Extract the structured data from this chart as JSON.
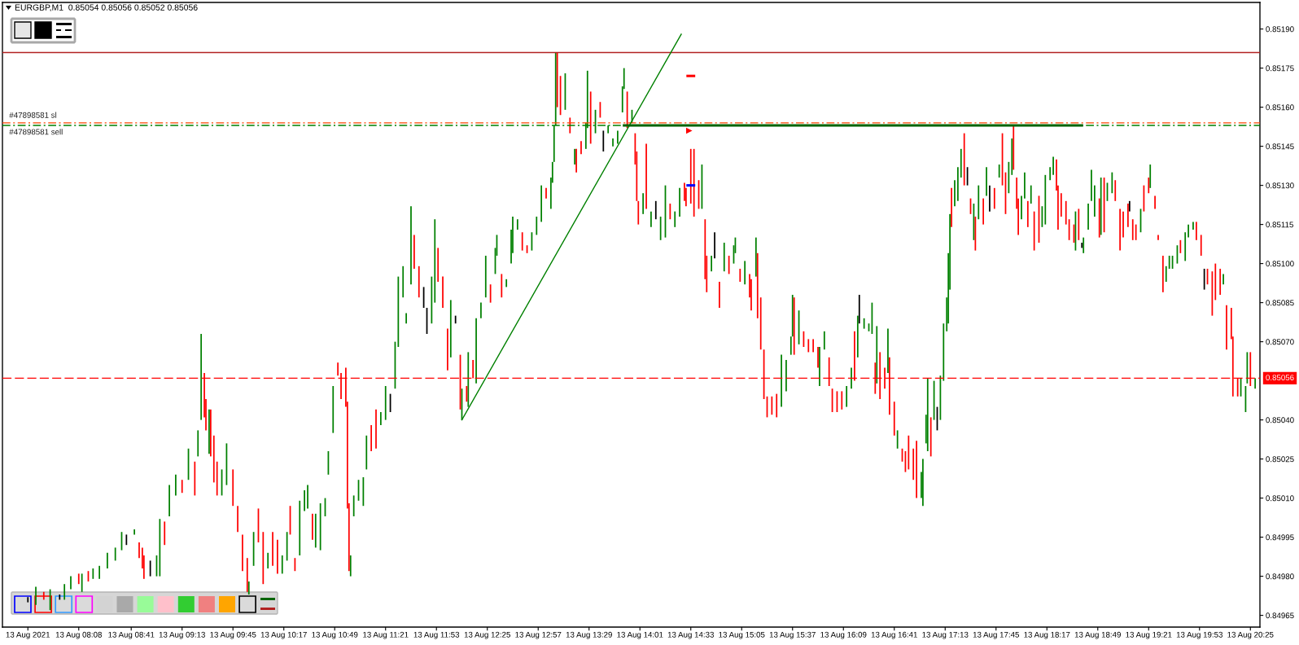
{
  "chart_data": {
    "type": "bar",
    "title": "EURGBP,M1  0.85054 0.85056 0.85052 0.85056",
    "xlim": [
      "2021-08-13T07:20",
      "2021-08-13T20:31"
    ],
    "xticks": [
      {
        "value": "2021-08-13T07:36",
        "label": "13 Aug 2021"
      },
      {
        "value": "2021-08-13T08:08",
        "label": "13 Aug 08:08"
      },
      {
        "value": "2021-08-13T08:41",
        "label": "13 Aug 08:41"
      },
      {
        "value": "2021-08-13T09:13",
        "label": "13 Aug 09:13"
      },
      {
        "value": "2021-08-13T09:45",
        "label": "13 Aug 09:45"
      },
      {
        "value": "2021-08-13T10:17",
        "label": "13 Aug 10:17"
      },
      {
        "value": "2021-08-13T10:49",
        "label": "13 Aug 10:49"
      },
      {
        "value": "2021-08-13T11:21",
        "label": "13 Aug 11:21"
      },
      {
        "value": "2021-08-13T11:53",
        "label": "13 Aug 11:53"
      },
      {
        "value": "2021-08-13T12:25",
        "label": "13 Aug 12:25"
      },
      {
        "value": "2021-08-13T12:57",
        "label": "13 Aug 12:57"
      },
      {
        "value": "2021-08-13T13:29",
        "label": "13 Aug 13:29"
      },
      {
        "value": "2021-08-13T14:01",
        "label": "13 Aug 14:01"
      },
      {
        "value": "2021-08-13T14:33",
        "label": "13 Aug 14:33"
      },
      {
        "value": "2021-08-13T15:05",
        "label": "13 Aug 15:05"
      },
      {
        "value": "2021-08-13T15:37",
        "label": "13 Aug 15:37"
      },
      {
        "value": "2021-08-13T16:09",
        "label": "13 Aug 16:09"
      },
      {
        "value": "2021-08-13T16:41",
        "label": "13 Aug 16:41"
      },
      {
        "value": "2021-08-13T17:13",
        "label": "13 Aug 17:13"
      },
      {
        "value": "2021-08-13T17:45",
        "label": "13 Aug 17:45"
      },
      {
        "value": "2021-08-13T18:17",
        "label": "13 Aug 18:17"
      },
      {
        "value": "2021-08-13T18:49",
        "label": "13 Aug 18:49"
      },
      {
        "value": "2021-08-13T19:21",
        "label": "13 Aug 19:21"
      },
      {
        "value": "2021-08-13T19:53",
        "label": "13 Aug 19:53"
      },
      {
        "value": "2021-08-13T20:25",
        "label": "13 Aug 20:25"
      }
    ],
    "ylim": [
      0.849605,
      0.852002
    ],
    "yticks": [
      {
        "value": 0.8519,
        "label": "0.85190"
      },
      0.85175,
      {
        "value": 0.8516,
        "label": "0.85160"
      },
      0.85145,
      {
        "value": 0.8513,
        "label": "0.85130"
      },
      0.85115,
      {
        "value": 0.851,
        "label": "0.85100"
      },
      0.85085,
      {
        "value": 0.8507,
        "label": "0.85070"
      },
      {
        "value": 0.8504,
        "label": "0.85040"
      },
      0.85025,
      {
        "value": 0.8501,
        "label": "0.85010"
      },
      0.84995,
      {
        "value": 0.8498,
        "label": "0.84980"
      },
      0.84965
    ],
    "ref_lines": [
      {
        "axis": "y",
        "value": 0.85181,
        "color": "#b22222",
        "line_style": "solid"
      },
      {
        "axis": "y",
        "value": 0.85154,
        "label": "#47898581 sl",
        "color": "#ff4500",
        "line_style": "dashdot"
      },
      {
        "axis": "y",
        "value": 0.85153,
        "label": "#47898581 sell",
        "color": "#008000",
        "line_style": "dashdot"
      },
      {
        "axis": "y",
        "value": 0.85056,
        "label": "0.85056",
        "color": "#ff0000",
        "line_style": "dashed"
      }
    ],
    "series": [
      {
        "color": "#008000",
        "x": [
          "2021-08-13T07:41",
          "2021-08-13T07:50",
          "2021-08-13T07:59",
          "2021-08-13T08:03",
          "2021-08-13T08:10",
          "2021-08-13T08:17",
          "2021-08-13T08:21",
          "2021-08-13T08:26",
          "2021-08-13T08:31",
          "2021-08-13T08:35",
          "2021-08-13T08:43",
          "2021-08-13T08:57",
          "2021-08-13T08:59",
          "2021-08-13T09:05",
          "2021-08-13T09:09",
          "2021-08-13T09:17",
          "2021-08-13T09:23",
          "2021-08-13T09:25",
          "2021-08-13T09:30",
          "2021-08-13T09:38",
          "2021-08-13T09:41",
          "2021-08-13T09:55",
          "2021-08-13T09:58",
          "2021-08-13T10:07",
          "2021-08-13T10:16",
          "2021-08-13T10:19",
          "2021-08-13T10:27",
          "2021-08-13T10:30",
          "2021-08-13T10:32",
          "2021-08-13T10:37",
          "2021-08-13T10:40",
          "2021-08-13T10:43",
          "2021-08-13T10:45",
          "2021-08-13T10:48",
          "2021-08-13T10:59",
          "2021-08-13T11:01",
          "2021-08-13T11:04",
          "2021-08-13T11:07",
          "2021-08-13T11:09",
          "2021-08-13T11:18",
          "2021-08-13T11:21",
          "2021-08-13T11:27",
          "2021-08-13T11:29",
          "2021-08-13T11:32",
          "2021-08-13T11:34",
          "2021-08-13T11:37",
          "2021-08-13T11:50",
          "2021-08-13T11:52",
          "2021-08-13T12:02",
          "2021-08-13T12:09",
          "2021-08-13T12:13",
          "2021-08-13T12:18",
          "2021-08-13T12:21",
          "2021-08-13T12:24",
          "2021-08-13T12:30",
          "2021-08-13T12:31",
          "2021-08-13T12:37",
          "2021-08-13T12:40",
          "2021-08-13T12:41",
          "2021-08-13T12:44",
          "2021-08-13T12:53",
          "2021-08-13T12:56",
          "2021-08-13T12:59",
          "2021-08-13T13:05",
          "2021-08-13T13:06",
          "2021-08-13T13:07",
          "2021-08-13T13:08",
          "2021-08-13T13:14",
          "2021-08-13T13:20",
          "2021-08-13T13:27",
          "2021-08-13T13:28",
          "2021-08-13T13:33",
          "2021-08-13T13:41",
          "2021-08-13T13:44",
          "2021-08-13T13:47",
          "2021-08-13T13:50",
          "2021-08-13T13:51",
          "2021-08-13T13:56",
          "2021-08-13T14:03",
          "2021-08-13T14:08",
          "2021-08-13T14:14",
          "2021-08-13T14:17",
          "2021-08-13T14:23",
          "2021-08-13T14:26",
          "2021-08-13T14:40",
          "2021-08-13T14:46",
          "2021-08-13T14:54",
          "2021-08-13T15:00",
          "2021-08-13T15:01",
          "2021-08-13T15:07",
          "2021-08-13T15:14",
          "2021-08-13T15:30",
          "2021-08-13T15:33",
          "2021-08-13T15:36",
          "2021-08-13T15:37",
          "2021-08-13T15:41",
          "2021-08-13T15:54",
          "2021-08-13T15:57",
          "2021-08-13T16:11",
          "2021-08-13T16:14",
          "2021-08-13T16:18",
          "2021-08-13T16:22",
          "2021-08-13T16:25",
          "2021-08-13T16:27",
          "2021-08-13T16:30",
          "2021-08-13T16:37",
          "2021-08-13T16:43",
          "2021-08-13T16:58",
          "2021-08-13T16:59",
          "2021-08-13T17:01",
          "2021-08-13T17:02",
          "2021-08-13T17:06",
          "2021-08-13T17:10",
          "2021-08-13T17:12",
          "2021-08-13T17:14",
          "2021-08-13T17:15",
          "2021-08-13T17:16",
          "2021-08-13T17:19",
          "2021-08-13T17:21",
          "2021-08-13T17:23",
          "2021-08-13T17:31",
          "2021-08-13T17:34",
          "2021-08-13T17:39",
          "2021-08-13T17:47",
          "2021-08-13T17:53",
          "2021-08-13T17:55",
          "2021-08-13T18:01",
          "2021-08-13T18:03",
          "2021-08-13T18:07",
          "2021-08-13T18:14",
          "2021-08-13T18:16",
          "2021-08-13T18:19",
          "2021-08-13T18:21",
          "2021-08-13T18:35",
          "2021-08-13T18:40",
          "2021-08-13T18:43",
          "2021-08-13T18:45",
          "2021-08-13T18:47",
          "2021-08-13T18:51",
          "2021-08-13T18:55",
          "2021-08-13T18:58",
          "2021-08-13T19:16",
          "2021-08-13T19:22",
          "2021-08-13T19:32",
          "2021-08-13T19:34",
          "2021-08-13T19:36",
          "2021-08-13T19:39",
          "2021-08-13T19:44",
          "2021-08-13T19:46",
          "2021-08-13T19:49",
          "2021-08-13T20:08",
          "2021-08-13T20:19",
          "2021-08-13T20:22",
          "2021-08-13T20:23",
          "2021-08-13T20:28"
        ],
        "base": [
          0.84969,
          0.84967,
          0.84971,
          0.84975,
          0.84974,
          0.84979,
          0.84979,
          0.84983,
          0.84986,
          0.8499,
          0.84996,
          0.8498,
          0.8498,
          0.85003,
          0.85011,
          0.85017,
          0.85026,
          0.8504,
          0.85027,
          0.85011,
          0.85015,
          0.84973,
          0.84984,
          0.84983,
          0.84981,
          0.84986,
          0.84988,
          0.85005,
          0.85006,
          0.84991,
          0.8499,
          0.85003,
          0.85019,
          0.85035,
          0.8498,
          0.85003,
          0.85009,
          0.85007,
          0.85021,
          0.85038,
          0.8504,
          0.85052,
          0.85068,
          0.85087,
          0.85077,
          0.85092,
          0.85077,
          0.85085,
          0.85064,
          0.8504,
          0.85045,
          0.85054,
          0.85079,
          0.85087,
          0.85096,
          0.85103,
          0.85091,
          0.851,
          0.85104,
          0.85113,
          0.85105,
          0.85111,
          0.85116,
          0.85121,
          0.85131,
          0.85139,
          0.85153,
          0.85159,
          0.85138,
          0.85144,
          0.85152,
          0.8515,
          0.8515,
          0.85145,
          0.85146,
          0.85158,
          0.85167,
          0.85154,
          0.85119,
          0.85114,
          0.85109,
          0.8511,
          0.85114,
          0.85118,
          0.85121,
          0.85097,
          0.85097,
          0.851,
          0.85104,
          0.85092,
          0.85095,
          0.85045,
          0.85051,
          0.85065,
          0.85072,
          0.85069,
          0.85053,
          0.85067,
          0.85045,
          0.85052,
          0.85064,
          0.85075,
          0.85074,
          0.85073,
          0.85054,
          0.85058,
          0.85029,
          0.8501,
          0.85007,
          0.85031,
          0.85028,
          0.8504,
          0.8504,
          0.85055,
          0.85074,
          0.85077,
          0.8509,
          0.85122,
          0.85124,
          0.85133,
          0.85109,
          0.85117,
          0.85126,
          0.85133,
          0.85127,
          0.85134,
          0.85117,
          0.85125,
          0.85123,
          0.85114,
          0.85115,
          0.85132,
          0.85134,
          0.85105,
          0.85104,
          0.85113,
          0.85124,
          0.85118,
          0.85111,
          0.85124,
          0.85127,
          0.85112,
          0.85129,
          0.85093,
          0.85098,
          0.85098,
          0.851,
          0.85101,
          0.8511,
          0.85113,
          0.85092,
          0.85049,
          0.85043,
          0.85054,
          0.85052
        ],
        "values": [
          7e-05,
          8e-05,
          6e-05,
          5e-05,
          7e-05,
          4e-05,
          5e-05,
          6e-05,
          5e-05,
          7e-05,
          2e-05,
          8e-05,
          0.00022,
          0.00012,
          8e-05,
          0.00012,
          0.0001,
          0.00033,
          0.00017,
          0.0001,
          0.00016,
          5e-05,
          0.00013,
          6e-05,
          7e-05,
          0.00011,
          0.00021,
          8e-05,
          9e-05,
          0.00013,
          0.00018,
          7e-05,
          9e-05,
          0.00018,
          8e-05,
          8e-05,
          8e-05,
          0.00011,
          0.00013,
          5e-05,
          0.00013,
          0.00018,
          0.00027,
          0.00012,
          4e-05,
          0.0003,
          0.00018,
          0.00032,
          0.00022,
          0.00012,
          0.00021,
          0.00025,
          6e-05,
          0.00016,
          0.0001,
          8e-05,
          3e-05,
          0.00013,
          0.00014,
          4e-05,
          7e-05,
          7e-05,
          0.00014,
          0.00012,
          8e-05,
          0.00014,
          0.00028,
          0.00014,
          6e-05,
          0.0001,
          0.00022,
          9e-05,
          3e-05,
          3e-05,
          5e-05,
          0.0001,
          8e-05,
          5e-05,
          8e-05,
          6e-05,
          9e-05,
          0.0002,
          6e-05,
          0.00011,
          0.00017,
          6e-05,
          0.00011,
          7e-05,
          6e-05,
          9e-05,
          0.00015,
          0.0002,
          0.00012,
          7e-05,
          0.00016,
          0.00013,
          0.00015,
          7e-05,
          8e-05,
          8e-05,
          0.00016,
          4e-05,
          3e-05,
          0.00012,
          0.00022,
          0.00017,
          7e-05,
          0.0001,
          0.00018,
          0.00011,
          0.00028,
          0.00015,
          0.00017,
          0.00022,
          0.00013,
          0.00027,
          0.00029,
          0.0001,
          0.00013,
          0.00011,
          0.00014,
          0.00013,
          0.00011,
          5e-05,
          0.00012,
          0.00014,
          9e-05,
          0.0001,
          7e-05,
          8e-05,
          0.00019,
          5e-05,
          7e-05,
          0.00015,
          6e-05,
          0.0001,
          0.00012,
          0.00012,
          0.00022,
          7e-05,
          8e-05,
          9e-05,
          9e-05,
          6e-05,
          5e-05,
          5e-05,
          7e-05,
          0.00011,
          5e-05,
          3e-05,
          4e-05,
          7e-05,
          0.0001,
          0.00012,
          4e-05
        ]
      },
      {
        "color": "#ff0000",
        "x": [
          "2021-08-13T07:46",
          "2021-08-13T08:08",
          "2021-08-13T08:14",
          "2021-08-13T08:46",
          "2021-08-13T08:48",
          "2021-08-13T08:49",
          "2021-08-13T09:02",
          "2021-08-13T09:13",
          "2021-08-13T09:21",
          "2021-08-13T09:27",
          "2021-08-13T09:28",
          "2021-08-13T09:31",
          "2021-08-13T09:33",
          "2021-08-13T09:35",
          "2021-08-13T09:45",
          "2021-08-13T09:48",
          "2021-08-13T09:51",
          "2021-08-13T09:54",
          "2021-08-13T10:01",
          "2021-08-13T10:04",
          "2021-08-13T10:10",
          "2021-08-13T10:13",
          "2021-08-13T10:21",
          "2021-08-13T10:24",
          "2021-08-13T10:35",
          "2021-08-13T10:51",
          "2021-08-13T10:53",
          "2021-08-13T10:56",
          "2021-08-13T10:57",
          "2021-08-13T10:58",
          "2021-08-13T11:12",
          "2021-08-13T11:15",
          "2021-08-13T11:39",
          "2021-08-13T11:42",
          "2021-08-13T11:54",
          "2021-08-13T11:57",
          "2021-08-13T12:00",
          "2021-08-13T12:08",
          "2021-08-13T12:12",
          "2021-08-13T12:16",
          "2021-08-13T12:27",
          "2021-08-13T12:34",
          "2021-08-13T12:47",
          "2021-08-13T12:50",
          "2021-08-13T13:02",
          "2021-08-13T13:09",
          "2021-08-13T13:11",
          "2021-08-13T13:17",
          "2021-08-13T13:21",
          "2021-08-13T13:24",
          "2021-08-13T13:30",
          "2021-08-13T13:36",
          "2021-08-13T13:53",
          "2021-08-13T13:58",
          "2021-08-13T13:59",
          "2021-08-13T14:00",
          "2021-08-13T14:05",
          "2021-08-13T14:20",
          "2021-08-13T14:29",
          "2021-08-13T14:30",
          "2021-08-13T14:33",
          "2021-08-13T14:35",
          "2021-08-13T14:38",
          "2021-08-13T14:42",
          "2021-08-13T14:43",
          "2021-08-13T14:51",
          "2021-08-13T14:57",
          "2021-08-13T15:04",
          "2021-08-13T15:10",
          "2021-08-13T15:11",
          "2021-08-13T15:15",
          "2021-08-13T15:17",
          "2021-08-13T15:19",
          "2021-08-13T15:21",
          "2021-08-13T15:24",
          "2021-08-13T15:27",
          "2021-08-13T15:38",
          "2021-08-13T15:44",
          "2021-08-13T15:47",
          "2021-08-13T15:50",
          "2021-08-13T15:53",
          "2021-08-13T16:00",
          "2021-08-13T16:02",
          "2021-08-13T16:05",
          "2021-08-13T16:08",
          "2021-08-13T16:16",
          "2021-08-13T16:29",
          "2021-08-13T16:32",
          "2021-08-13T16:35",
          "2021-08-13T16:38",
          "2021-08-13T16:41",
          "2021-08-13T16:46",
          "2021-08-13T16:48",
          "2021-08-13T16:50",
          "2021-08-13T16:53",
          "2021-08-13T16:55",
          "2021-08-13T17:04",
          "2021-08-13T17:17",
          "2021-08-13T17:25",
          "2021-08-13T17:29",
          "2021-08-13T17:32",
          "2021-08-13T17:37",
          "2021-08-13T17:44",
          "2021-08-13T17:49",
          "2021-08-13T17:51",
          "2021-08-13T17:56",
          "2021-08-13T17:58",
          "2021-08-13T17:59",
          "2021-08-13T18:05",
          "2021-08-13T18:09",
          "2021-08-13T18:12",
          "2021-08-13T18:23",
          "2021-08-13T18:24",
          "2021-08-13T18:26",
          "2021-08-13T18:29",
          "2021-08-13T18:31",
          "2021-08-13T18:34",
          "2021-08-13T18:37",
          "2021-08-13T18:50",
          "2021-08-13T18:53",
          "2021-08-13T19:00",
          "2021-08-13T19:03",
          "2021-08-13T19:05",
          "2021-08-13T19:08",
          "2021-08-13T19:11",
          "2021-08-13T19:13",
          "2021-08-13T19:18",
          "2021-08-13T19:21",
          "2021-08-13T19:25",
          "2021-08-13T19:27",
          "2021-08-13T19:30",
          "2021-08-13T19:41",
          "2021-08-13T19:51",
          "2021-08-13T19:54",
          "2021-08-13T19:58",
          "2021-08-13T20:01",
          "2021-08-13T20:03",
          "2021-08-13T20:06",
          "2021-08-13T20:10",
          "2021-08-13T20:13",
          "2021-08-13T20:14",
          "2021-08-13T20:17",
          "2021-08-13T20:25"
        ],
        "base": [
          0.84971,
          0.84977,
          0.84978,
          0.84987,
          0.84983,
          0.84979,
          0.84992,
          0.85012,
          0.85011,
          0.85041,
          0.85036,
          0.85026,
          0.85016,
          0.85011,
          0.85007,
          0.84997,
          0.84982,
          0.84974,
          0.84993,
          0.84977,
          0.84984,
          0.84981,
          0.84996,
          0.84982,
          0.84994,
          0.85057,
          0.85048,
          0.85045,
          0.85006,
          0.84982,
          0.85028,
          0.85029,
          0.85098,
          0.85087,
          0.85093,
          0.85083,
          0.85059,
          0.85044,
          0.85047,
          0.85056,
          0.85085,
          0.85087,
          0.85105,
          0.85104,
          0.85125,
          0.8516,
          0.85157,
          0.8515,
          0.85135,
          0.85142,
          0.85146,
          0.85156,
          0.85152,
          0.85138,
          0.85124,
          0.85115,
          0.85121,
          0.85117,
          0.85124,
          0.85122,
          0.85123,
          0.85118,
          0.85121,
          0.85094,
          0.85089,
          0.85083,
          0.85096,
          0.85093,
          0.85087,
          0.85082,
          0.85079,
          0.85067,
          0.85048,
          0.85041,
          0.85042,
          0.85041,
          0.85065,
          0.85068,
          0.85066,
          0.85066,
          0.8506,
          0.85053,
          0.85043,
          0.85043,
          0.85044,
          0.85055,
          0.8505,
          0.85048,
          0.85052,
          0.85042,
          0.85034,
          0.85024,
          0.8502,
          0.85021,
          0.85017,
          0.8501,
          0.85026,
          0.85114,
          0.8513,
          0.85119,
          0.85105,
          0.85115,
          0.85121,
          0.8513,
          0.85119,
          0.85136,
          0.85121,
          0.85111,
          0.85114,
          0.85105,
          0.85108,
          0.85128,
          0.85113,
          0.85118,
          0.85115,
          0.85109,
          0.85108,
          0.85109,
          0.8511,
          0.85112,
          0.85124,
          0.85105,
          0.8511,
          0.85114,
          0.85109,
          0.85109,
          0.8512,
          0.85127,
          0.85121,
          0.85109,
          0.85089,
          0.85104,
          0.85109,
          0.85103,
          0.85092,
          0.8508,
          0.85086,
          0.85088,
          0.85067,
          0.85071,
          0.85049,
          0.85049,
          0.85053
        ],
        "values": [
          3e-05,
          4e-05,
          4e-05,
          6e-05,
          8e-05,
          9e-05,
          9e-05,
          5e-05,
          0.00013,
          0.00017,
          0.00012,
          0.00018,
          0.00018,
          0.00013,
          0.00014,
          0.0001,
          0.00014,
          0.00013,
          0.00013,
          0.0002,
          0.00013,
          0.00013,
          0.00011,
          5e-05,
          0.0001,
          5e-05,
          0.0001,
          0.00015,
          0.00041,
          0.00026,
          0.0001,
          0.00015,
          0.00013,
          0.00012,
          0.00013,
          0.00012,
          0.00016,
          0.00021,
          6e-05,
          7e-05,
          7e-05,
          9e-05,
          7e-05,
          3e-05,
          4e-05,
          0.00021,
          0.00015,
          6e-05,
          9e-05,
          5e-05,
          0.0002,
          6e-05,
          0.00014,
          0.00012,
          0.00019,
          9e-05,
          0.00025,
          6e-05,
          7e-05,
          7e-05,
          0.00021,
          0.00026,
          0.00011,
          0.00023,
          0.00014,
          0.0001,
          7e-05,
          5e-05,
          9e-05,
          0.00012,
          0.00025,
          0.0002,
          0.00019,
          8e-05,
          7e-05,
          9e-05,
          0.00022,
          6e-05,
          5e-05,
          5e-05,
          8e-05,
          0.00011,
          9e-05,
          8e-05,
          7e-05,
          0.00019,
          0.00012,
          0.00018,
          8e-05,
          0.00022,
          0.00013,
          5e-05,
          8e-05,
          0.00013,
          0.00012,
          0.00022,
          0.00015,
          0.00015,
          0.0002,
          6e-05,
          0.00013,
          0.0001,
          8e-05,
          0.0002,
          0.00016,
          0.00017,
          0.00012,
          0.00014,
          0.0001,
          0.00015,
          0.00018,
          0.00012,
          0.00017,
          9e-05,
          9e-05,
          8e-05,
          7e-05,
          0.00012,
          0.00015,
          0.00021,
          8e-05,
          0.00016,
          0.0001,
          9e-05,
          8e-05,
          6e-05,
          0.0001,
          6e-05,
          5e-05,
          2e-05,
          0.00014,
          5e-05,
          7e-05,
          8e-05,
          6e-05,
          0.00017,
          0.00014,
          0.0001,
          0.00017,
          0.00012,
          0.00023,
          7e-05,
          0.00013
        ]
      },
      {
        "color": "#000000",
        "x": [
          "2021-08-13T07:36",
          "2021-08-13T07:56",
          "2021-08-13T08:38",
          "2021-08-13T08:53",
          "2021-08-13T11:24",
          "2021-08-13T11:45",
          "2021-08-13T11:47",
          "2021-08-13T12:05",
          "2021-08-13T13:38",
          "2021-08-13T14:11",
          "2021-08-13T14:48",
          "2021-08-13T16:19",
          "2021-08-13T17:08",
          "2021-08-13T17:27",
          "2021-08-13T17:41",
          "2021-08-13T18:39",
          "2021-08-13T19:09",
          "2021-08-13T19:56"
        ],
        "base": [
          0.8497,
          0.84971,
          0.84992,
          0.8498,
          0.85043,
          0.85083,
          0.85073,
          0.85077,
          0.85143,
          0.85117,
          0.85102,
          0.85077,
          0.85036,
          0.8513,
          0.8512,
          0.85106,
          0.8512,
          0.8509
        ],
        "values": [
          2e-05,
          2e-05,
          4e-05,
          6e-05,
          7e-05,
          8e-05,
          0.0001,
          3e-05,
          8e-05,
          7e-05,
          0.0001,
          0.00011,
          9e-05,
          7e-05,
          0.0001,
          2e-05,
          4e-05,
          8e-05
        ]
      },
      {
        "type": "line",
        "color": "#008000",
        "x": [
          "2021-08-13T12:09",
          "2021-08-13T14:27"
        ],
        "values": [
          0.8504,
          0.85188
        ]
      },
      {
        "type": "line",
        "color": "#006400",
        "x": [
          "2021-08-13T13:51",
          "2021-08-13T18:39"
        ],
        "values": [
          0.85153,
          0.85153
        ]
      },
      {
        "type": "line",
        "color": "#ff0000",
        "x": [
          "2021-08-13T14:31",
          "2021-08-13T14:35"
        ],
        "values": [
          0.85172,
          0.85172
        ]
      },
      {
        "type": "line",
        "color": "#0000ff",
        "x": [
          "2021-08-13T14:31",
          "2021-08-13T14:35"
        ],
        "values": [
          0.8513,
          0.8513
        ]
      },
      {
        "type": "scatter",
        "color": "#ff0000",
        "marker": "triangle",
        "x": [
          "2021-08-13T14:32"
        ],
        "values": [
          0.85151
        ]
      }
    ]
  }
}
